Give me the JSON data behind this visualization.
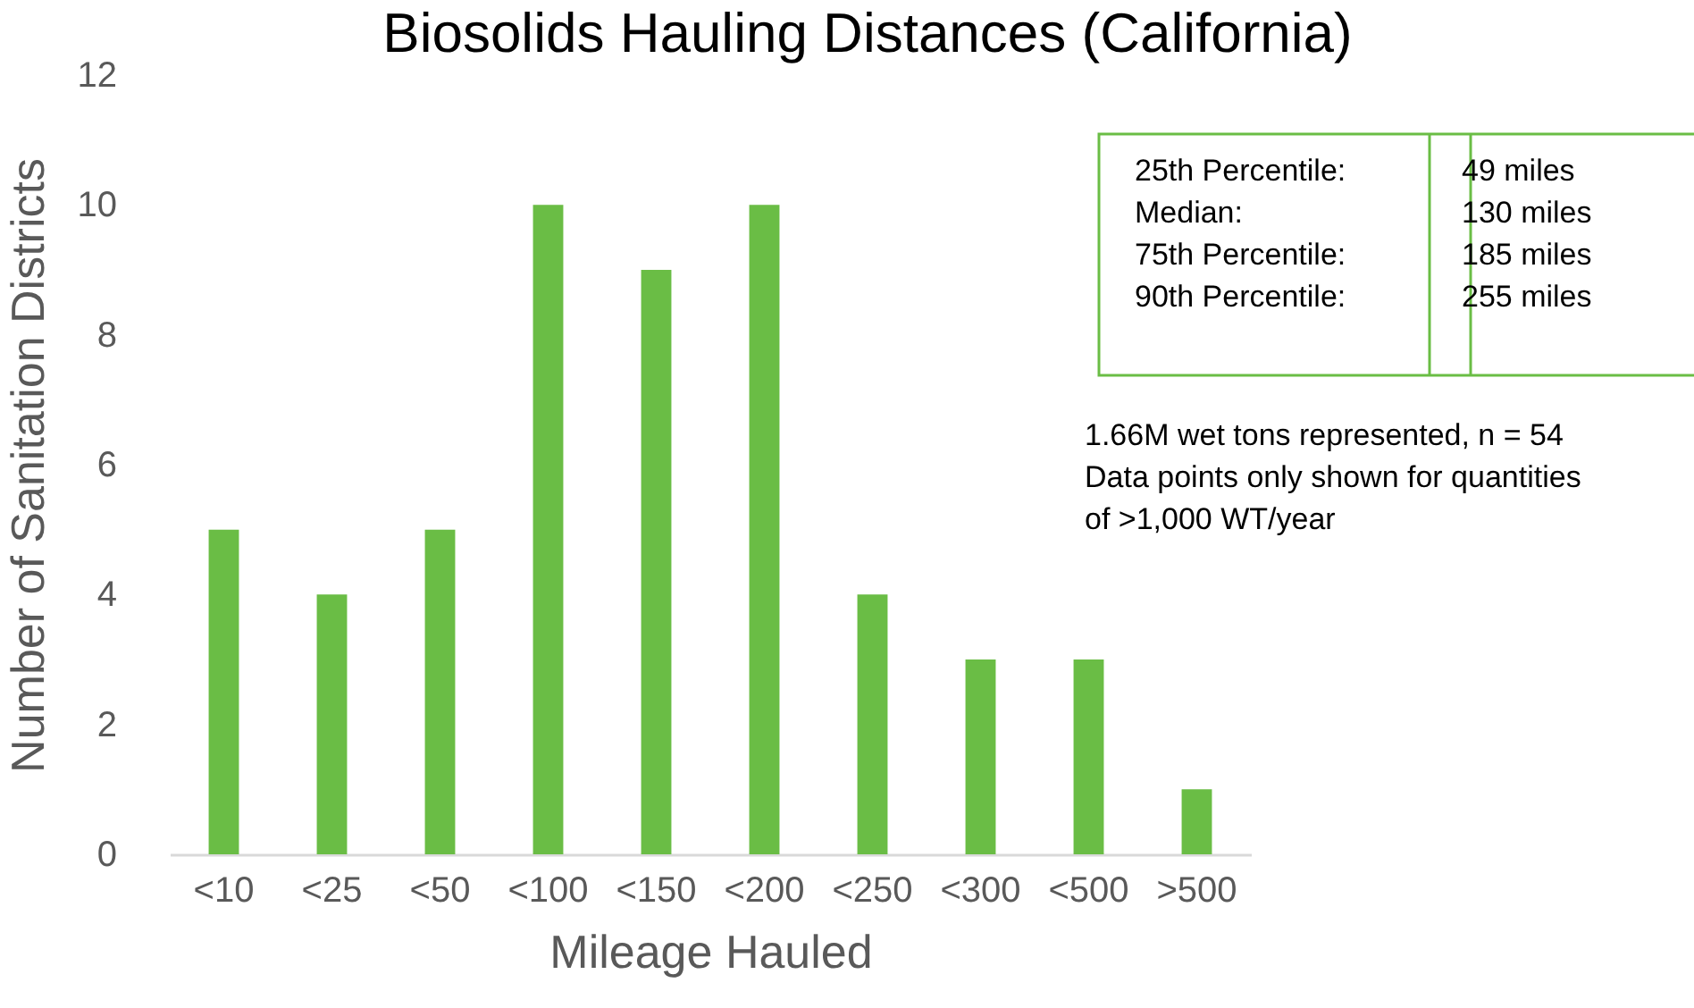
{
  "chart_data": {
    "type": "bar",
    "title": "Biosolids Hauling Distances (California)",
    "xlabel": "Mileage Hauled",
    "ylabel": "Number of Sanitation Districts",
    "categories": [
      "<10",
      "<25",
      "<50",
      "<100",
      "<150",
      "<200",
      "<250",
      "<300",
      "<500",
      ">500"
    ],
    "series": [
      {
        "color": "#6abd45",
        "values": [
          5,
          4,
          5,
          10,
          9,
          10,
          4,
          3,
          3,
          1
        ]
      }
    ],
    "ylim": [
      0,
      12
    ],
    "yticks": [
      0,
      2,
      4,
      6,
      8,
      10,
      12
    ],
    "grid": false,
    "legend": false,
    "annotations": [
      "25th Percentile:",
      "49 miles",
      "Median:",
      "130 miles",
      "75th Percentile:",
      "185 miles",
      "90th Percentile:",
      "255 miles",
      "1.66M wet tons represented, n = 54",
      "Data points only shown for quantities",
      "of >1,000 WT/year"
    ]
  }
}
